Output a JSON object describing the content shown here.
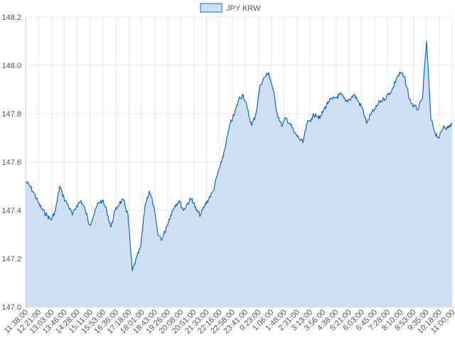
{
  "chart_data": {
    "type": "area",
    "title": "",
    "xlabel": "",
    "ylabel": "",
    "ylim": [
      147.0,
      148.2
    ],
    "y_ticks": [
      "147.0",
      "147.2",
      "147.4",
      "147.6",
      "147.8",
      "148.0",
      "148.2"
    ],
    "x_ticks": [
      "11:38:00",
      "12:21:00",
      "13:03:00",
      "13:46:00",
      "14:28:00",
      "15:11:00",
      "15:53:00",
      "16:36:00",
      "17:18:00",
      "18:01:00",
      "18:43:00",
      "19:26:00",
      "20:08:00",
      "20:51:00",
      "21:33:00",
      "22:16:00",
      "22:58:00",
      "23:41:00",
      "0:23:00",
      "1:06:00",
      "1:48:00",
      "2:31:00",
      "3:13:00",
      "3:56:00",
      "4:38:00",
      "5:21:00",
      "6:03:00",
      "6:45:00",
      "7:28:00",
      "8:10:00",
      "8:53:00",
      "9:35:00",
      "10:18:00",
      "11:00:00"
    ],
    "grid": true,
    "legend_position": "top-center",
    "colors": {
      "line": "#1565c0",
      "fill": "#cfe0f5",
      "grid": "#e6e6e6"
    },
    "series": [
      {
        "name": "JPY KRW",
        "values": [
          147.52,
          147.5,
          147.47,
          147.43,
          147.4,
          147.38,
          147.36,
          147.4,
          147.5,
          147.45,
          147.42,
          147.38,
          147.42,
          147.44,
          147.4,
          147.34,
          147.38,
          147.43,
          147.44,
          147.4,
          147.33,
          147.4,
          147.43,
          147.44,
          147.38,
          147.15,
          147.2,
          147.25,
          147.42,
          147.48,
          147.42,
          147.3,
          147.28,
          147.33,
          147.38,
          147.42,
          147.44,
          147.4,
          147.43,
          147.45,
          147.4,
          147.38,
          147.42,
          147.45,
          147.48,
          147.55,
          147.6,
          147.68,
          147.76,
          147.8,
          147.86,
          147.88,
          147.82,
          147.75,
          147.8,
          147.92,
          147.95,
          147.97,
          147.9,
          147.8,
          147.75,
          147.78,
          147.76,
          147.72,
          147.7,
          147.68,
          147.76,
          147.78,
          147.8,
          147.78,
          147.82,
          147.85,
          147.86,
          147.87,
          147.88,
          147.85,
          147.86,
          147.88,
          147.85,
          147.82,
          147.76,
          147.8,
          147.82,
          147.85,
          147.86,
          147.88,
          147.9,
          147.95,
          147.97,
          147.94,
          147.86,
          147.83,
          147.82,
          147.86,
          148.1,
          147.78,
          147.72,
          147.7,
          147.75,
          147.74,
          147.76
        ]
      }
    ]
  }
}
